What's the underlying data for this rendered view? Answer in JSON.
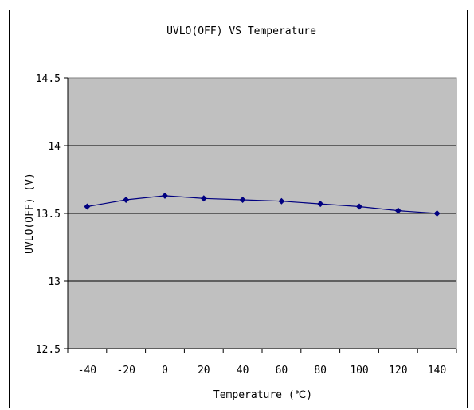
{
  "chart_data": {
    "type": "line",
    "title": "UVLO(OFF) VS Temperature",
    "xlabel": "Temperature (℃)",
    "ylabel": "UVLO(OFF)  (V)",
    "categories": [
      "-40",
      "-20",
      "0",
      "20",
      "40",
      "60",
      "80",
      "100",
      "120",
      "140"
    ],
    "y_ticks": [
      "12.5",
      "13",
      "13.5",
      "14",
      "14.5"
    ],
    "ylim": [
      12.5,
      14.5
    ],
    "grid": true,
    "legend": "none",
    "series": [
      {
        "values": [
          13.55,
          13.6,
          13.63,
          13.61,
          13.6,
          13.59,
          13.57,
          13.55,
          13.52,
          13.5
        ]
      }
    ],
    "colors": {
      "plot_background": "#c0c0c0",
      "gridline": "#000000",
      "line": "#000080",
      "marker": "#000080"
    }
  }
}
